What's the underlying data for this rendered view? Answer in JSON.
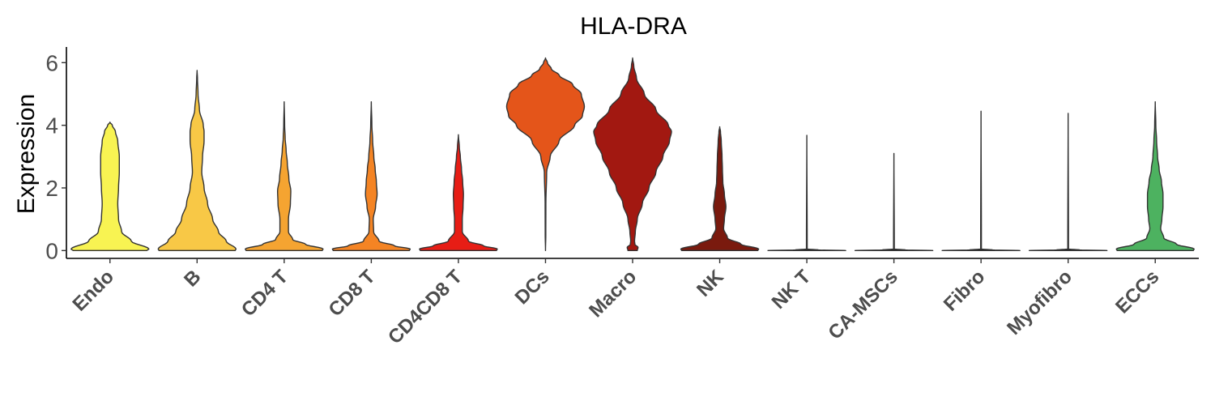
{
  "chart_data": {
    "type": "violin",
    "title": "HLA-DRA",
    "xlabel": "",
    "ylabel": "Expression",
    "ylim": [
      -0.25,
      6.5
    ],
    "yticks": [
      0,
      2,
      4,
      6
    ],
    "grid": false,
    "legend": "none",
    "categories": [
      "Endo",
      "B",
      "CD4 T",
      "CD8 T",
      "CD4CD8 T",
      "DCs",
      "Macro",
      "NK",
      "NK T",
      "CA-MSCs",
      "Fibro",
      "Myofibro",
      "ECCs"
    ],
    "series": [
      {
        "category": "Endo",
        "color": "#f8f352",
        "max": 4.1,
        "profile": [
          [
            0,
            0.95
          ],
          [
            0.05,
            1.0
          ],
          [
            0.3,
            0.55
          ],
          [
            0.6,
            0.3
          ],
          [
            1.0,
            0.22
          ],
          [
            1.5,
            0.2
          ],
          [
            2.0,
            0.22
          ],
          [
            2.5,
            0.24
          ],
          [
            3.0,
            0.24
          ],
          [
            3.5,
            0.2
          ],
          [
            3.8,
            0.14
          ],
          [
            4.0,
            0.06
          ],
          [
            4.1,
            0.0
          ]
        ]
      },
      {
        "category": "B",
        "color": "#f8c846",
        "max": 5.75,
        "profile": [
          [
            0,
            0.98
          ],
          [
            0.05,
            1.0
          ],
          [
            0.3,
            0.75
          ],
          [
            0.6,
            0.55
          ],
          [
            1.0,
            0.4
          ],
          [
            1.5,
            0.27
          ],
          [
            2.0,
            0.18
          ],
          [
            2.5,
            0.12
          ],
          [
            3.0,
            0.14
          ],
          [
            3.5,
            0.18
          ],
          [
            3.8,
            0.18
          ],
          [
            4.0,
            0.16
          ],
          [
            4.5,
            0.06
          ],
          [
            5.0,
            0.025
          ],
          [
            5.5,
            0.01
          ],
          [
            5.75,
            0.0
          ]
        ]
      },
      {
        "category": "CD4 T",
        "color": "#f5a431",
        "max": 4.75,
        "profile": [
          [
            0,
            0.98
          ],
          [
            0.05,
            1.0
          ],
          [
            0.2,
            0.55
          ],
          [
            0.35,
            0.22
          ],
          [
            0.6,
            0.11
          ],
          [
            1.0,
            0.11
          ],
          [
            1.5,
            0.16
          ],
          [
            1.9,
            0.17
          ],
          [
            2.3,
            0.12
          ],
          [
            2.8,
            0.08
          ],
          [
            3.2,
            0.05
          ],
          [
            3.6,
            0.025
          ],
          [
            4.0,
            0.012
          ],
          [
            4.75,
            0.0
          ]
        ]
      },
      {
        "category": "CD8 T",
        "color": "#f48424",
        "max": 4.75,
        "profile": [
          [
            0,
            0.98
          ],
          [
            0.05,
            1.0
          ],
          [
            0.15,
            0.6
          ],
          [
            0.3,
            0.2
          ],
          [
            0.6,
            0.06
          ],
          [
            1.0,
            0.05
          ],
          [
            1.4,
            0.11
          ],
          [
            1.8,
            0.15
          ],
          [
            2.2,
            0.13
          ],
          [
            2.6,
            0.1
          ],
          [
            3.0,
            0.065
          ],
          [
            3.5,
            0.035
          ],
          [
            4.0,
            0.015
          ],
          [
            4.75,
            0.0
          ]
        ]
      },
      {
        "category": "CD4CD8 T",
        "color": "#e71d15",
        "max": 3.7,
        "profile": [
          [
            0,
            0.98
          ],
          [
            0.05,
            1.0
          ],
          [
            0.15,
            0.65
          ],
          [
            0.3,
            0.26
          ],
          [
            0.6,
            0.1
          ],
          [
            1.0,
            0.1
          ],
          [
            1.4,
            0.12
          ],
          [
            1.8,
            0.13
          ],
          [
            2.2,
            0.11
          ],
          [
            2.6,
            0.08
          ],
          [
            3.0,
            0.05
          ],
          [
            3.3,
            0.025
          ],
          [
            3.7,
            0.0
          ]
        ]
      },
      {
        "category": "DCs",
        "color": "#e4551a",
        "max": 6.15,
        "profile": [
          [
            0,
            0.0
          ],
          [
            0.5,
            0.008
          ],
          [
            1.5,
            0.01
          ],
          [
            2.5,
            0.03
          ],
          [
            3.0,
            0.12
          ],
          [
            3.5,
            0.35
          ],
          [
            4.0,
            0.75
          ],
          [
            4.3,
            0.95
          ],
          [
            4.6,
            1.0
          ],
          [
            5.0,
            0.92
          ],
          [
            5.3,
            0.7
          ],
          [
            5.6,
            0.35
          ],
          [
            5.8,
            0.15
          ],
          [
            6.0,
            0.05
          ],
          [
            6.15,
            0.0
          ]
        ]
      },
      {
        "category": "Macro",
        "color": "#a21811",
        "max": 6.15,
        "profile": [
          [
            0,
            0.12
          ],
          [
            0.1,
            0.14
          ],
          [
            0.2,
            0.06
          ],
          [
            0.3,
            0.05
          ],
          [
            0.6,
            0.07
          ],
          [
            1.0,
            0.12
          ],
          [
            1.5,
            0.25
          ],
          [
            2.0,
            0.42
          ],
          [
            2.5,
            0.6
          ],
          [
            3.0,
            0.78
          ],
          [
            3.5,
            0.95
          ],
          [
            3.8,
            1.0
          ],
          [
            4.0,
            0.92
          ],
          [
            4.5,
            0.6
          ],
          [
            5.0,
            0.3
          ],
          [
            5.5,
            0.1
          ],
          [
            5.9,
            0.03
          ],
          [
            6.15,
            0.0
          ]
        ]
      },
      {
        "category": "NK",
        "color": "#7a1a0e",
        "max": 3.95,
        "profile": [
          [
            0,
            0.98
          ],
          [
            0.05,
            1.0
          ],
          [
            0.2,
            0.55
          ],
          [
            0.4,
            0.2
          ],
          [
            0.7,
            0.1
          ],
          [
            1.0,
            0.12
          ],
          [
            1.4,
            0.16
          ],
          [
            1.8,
            0.12
          ],
          [
            2.2,
            0.08
          ],
          [
            2.6,
            0.07
          ],
          [
            3.0,
            0.06
          ],
          [
            3.5,
            0.04
          ],
          [
            3.8,
            0.02
          ],
          [
            3.95,
            0.0
          ]
        ]
      },
      {
        "category": "NK T",
        "color": "#222222",
        "max": 3.68,
        "profile": [
          [
            0,
            1.0
          ],
          [
            0.02,
            0.3
          ],
          [
            0.05,
            0.01
          ],
          [
            3.68,
            0.0
          ]
        ]
      },
      {
        "category": "CA-MSCs",
        "color": "#222222",
        "max": 3.1,
        "profile": [
          [
            0,
            1.0
          ],
          [
            0.02,
            0.3
          ],
          [
            0.05,
            0.01
          ],
          [
            3.1,
            0.0
          ]
        ]
      },
      {
        "category": "Fibro",
        "color": "#222222",
        "max": 4.45,
        "profile": [
          [
            0,
            1.0
          ],
          [
            0.02,
            0.3
          ],
          [
            0.05,
            0.01
          ],
          [
            4.45,
            0.0
          ]
        ]
      },
      {
        "category": "Myofibro",
        "color": "#222222",
        "max": 4.38,
        "profile": [
          [
            0,
            1.0
          ],
          [
            0.02,
            0.3
          ],
          [
            0.05,
            0.01
          ],
          [
            4.38,
            0.0
          ]
        ]
      },
      {
        "category": "ECCs",
        "color": "#4db260",
        "max": 4.75,
        "profile": [
          [
            0,
            0.98
          ],
          [
            0.05,
            1.0
          ],
          [
            0.2,
            0.55
          ],
          [
            0.4,
            0.22
          ],
          [
            0.7,
            0.14
          ],
          [
            1.0,
            0.17
          ],
          [
            1.4,
            0.2
          ],
          [
            1.8,
            0.2
          ],
          [
            2.2,
            0.16
          ],
          [
            2.6,
            0.1
          ],
          [
            3.0,
            0.06
          ],
          [
            3.5,
            0.035
          ],
          [
            4.0,
            0.015
          ],
          [
            4.75,
            0.0
          ]
        ]
      }
    ]
  }
}
